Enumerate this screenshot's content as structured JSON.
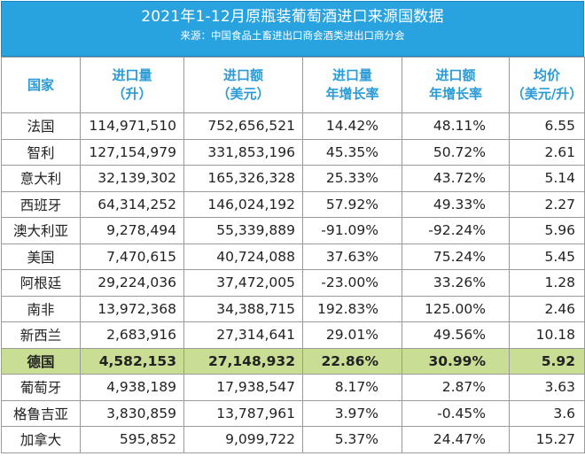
{
  "title": "2021年1-12月原瓶装葡萄酒进口来源国数据",
  "source": "来源：中国食品土畜进出口商会酒类进出口商分会",
  "headers": {
    "country": "国家",
    "volume": [
      "进口量",
      "（升）"
    ],
    "value": [
      "进口额",
      "（美元）"
    ],
    "volume_growth": [
      "进口量",
      "年增长率"
    ],
    "value_growth": [
      "进口额",
      "年增长率"
    ],
    "avg_price": [
      "均价",
      "（美元/升）"
    ]
  },
  "rows": [
    {
      "country": "法国",
      "volume": "114,971,510",
      "value": "752,656,521",
      "volume_growth": "14.42%",
      "value_growth": "48.11%",
      "avg_price": "6.55"
    },
    {
      "country": "智利",
      "volume": "127,154,979",
      "value": "331,853,196",
      "volume_growth": "45.35%",
      "value_growth": "50.72%",
      "avg_price": "2.61"
    },
    {
      "country": "意大利",
      "volume": "32,139,302",
      "value": "165,326,328",
      "volume_growth": "25.33%",
      "value_growth": "43.72%",
      "avg_price": "5.14"
    },
    {
      "country": "西班牙",
      "volume": "64,314,252",
      "value": "146,024,192",
      "volume_growth": "57.92%",
      "value_growth": "49.33%",
      "avg_price": "2.27"
    },
    {
      "country": "澳大利亚",
      "volume": "9,278,494",
      "value": "55,339,889",
      "volume_growth": "-91.09%",
      "value_growth": "-92.24%",
      "avg_price": "5.96"
    },
    {
      "country": "美国",
      "volume": "7,470,615",
      "value": "40,724,088",
      "volume_growth": "37.63%",
      "value_growth": "75.24%",
      "avg_price": "5.45"
    },
    {
      "country": "阿根廷",
      "volume": "29,224,036",
      "value": "37,472,005",
      "volume_growth": "-23.00%",
      "value_growth": "33.26%",
      "avg_price": "1.28"
    },
    {
      "country": "南非",
      "volume": "13,972,368",
      "value": "34,388,715",
      "volume_growth": "192.83%",
      "value_growth": "125.00%",
      "avg_price": "2.46"
    },
    {
      "country": "新西兰",
      "volume": "2,683,916",
      "value": "27,314,641",
      "volume_growth": "29.01%",
      "value_growth": "49.56%",
      "avg_price": "10.18"
    },
    {
      "country": "德国",
      "volume": "4,582,153",
      "value": "27,148,932",
      "volume_growth": "22.86%",
      "value_growth": "30.99%",
      "avg_price": "5.92",
      "highlight": true
    },
    {
      "country": "葡萄牙",
      "volume": "4,938,189",
      "value": "17,938,547",
      "volume_growth": "8.17%",
      "value_growth": "2.87%",
      "avg_price": "3.63"
    },
    {
      "country": "格鲁吉亚",
      "volume": "3,830,859",
      "value": "13,787,961",
      "volume_growth": "3.97%",
      "value_growth": "-0.45%",
      "avg_price": "3.6"
    },
    {
      "country": "加拿大",
      "volume": "595,852",
      "value": "9,099,722",
      "volume_growth": "5.37%",
      "value_growth": "24.47%",
      "avg_price": "15.27"
    }
  ]
}
